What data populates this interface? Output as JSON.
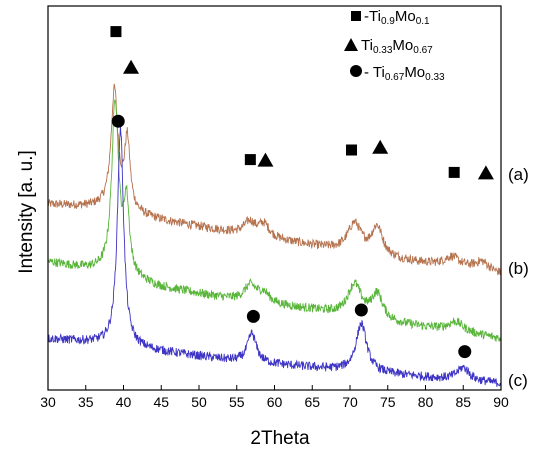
{
  "chart_data": {
    "type": "line",
    "xlabel": "2Theta",
    "ylabel": "Intensity [a. u.]",
    "xlim": [
      30,
      90
    ],
    "xticks": [
      30,
      35,
      40,
      45,
      50,
      55,
      60,
      65,
      70,
      75,
      80,
      85,
      90
    ],
    "grid": false,
    "legend": {
      "placement": "top-right",
      "entries": [
        {
          "marker": "square",
          "prefix": "-Ti",
          "sub1": "0.9",
          "mid": "Mo",
          "sub2": "0.1"
        },
        {
          "marker": "triangle",
          "prefix": "Ti",
          "sub1": "0.33",
          "mid": "Mo",
          "sub2": "0.67"
        },
        {
          "marker": "circle",
          "prefix": "- Ti",
          "sub1": "0.67",
          "mid": "Mo",
          "sub2": "0.33"
        }
      ]
    },
    "series": [
      {
        "name": "(a)",
        "color": "#b5734f",
        "baseline": [
          [
            30,
            0.58
          ],
          [
            37,
            0.57
          ],
          [
            45,
            0.53
          ],
          [
            55,
            0.49
          ],
          [
            65,
            0.45
          ],
          [
            75,
            0.41
          ],
          [
            85,
            0.38
          ],
          [
            90,
            0.36
          ]
        ],
        "peaks": [
          {
            "x": 38.8,
            "h": 0.37,
            "w": 0.55
          },
          {
            "x": 40.5,
            "h": 0.22,
            "w": 0.45
          },
          {
            "x": 56.7,
            "h": 0.04,
            "w": 0.9
          },
          {
            "x": 58.6,
            "h": 0.04,
            "w": 0.9
          },
          {
            "x": 70.6,
            "h": 0.09,
            "w": 1.1
          },
          {
            "x": 73.6,
            "h": 0.09,
            "w": 0.9
          },
          {
            "x": 83.5,
            "h": 0.03,
            "w": 1.2
          },
          {
            "x": 87.5,
            "h": 0.03,
            "w": 1.2
          }
        ]
      },
      {
        "name": "(b)",
        "color": "#59b53a",
        "baseline": [
          [
            30,
            0.4
          ],
          [
            37,
            0.37
          ],
          [
            45,
            0.32
          ],
          [
            55,
            0.28
          ],
          [
            65,
            0.25
          ],
          [
            75,
            0.21
          ],
          [
            85,
            0.18
          ],
          [
            90,
            0.16
          ]
        ],
        "peaks": [
          {
            "x": 38.9,
            "h": 0.54,
            "w": 0.55
          },
          {
            "x": 40.4,
            "h": 0.22,
            "w": 0.45
          },
          {
            "x": 56.8,
            "h": 0.05,
            "w": 1.0
          },
          {
            "x": 58.6,
            "h": 0.03,
            "w": 0.9
          },
          {
            "x": 70.6,
            "h": 0.1,
            "w": 1.1
          },
          {
            "x": 73.6,
            "h": 0.08,
            "w": 0.9
          },
          {
            "x": 84.0,
            "h": 0.03,
            "w": 1.2
          }
        ]
      },
      {
        "name": "(c)",
        "color": "#3d33c4",
        "baseline": [
          [
            30,
            0.16
          ],
          [
            35,
            0.15
          ],
          [
            45,
            0.12
          ],
          [
            55,
            0.09
          ],
          [
            65,
            0.07
          ],
          [
            75,
            0.05
          ],
          [
            85,
            0.03
          ],
          [
            90,
            0.02
          ]
        ],
        "peaks": [
          {
            "x": 39.6,
            "h": 0.68,
            "w": 0.5
          },
          {
            "x": 57.0,
            "h": 0.09,
            "w": 0.7
          },
          {
            "x": 71.5,
            "h": 0.15,
            "w": 0.85
          },
          {
            "x": 85.0,
            "h": 0.04,
            "w": 1.0
          }
        ]
      }
    ],
    "phase_markers": [
      {
        "shape": "square",
        "x": 39.0,
        "y": 1.12
      },
      {
        "shape": "triangle",
        "x": 41.0,
        "y": 1.01
      },
      {
        "shape": "square",
        "x": 56.8,
        "y": 0.72
      },
      {
        "shape": "triangle",
        "x": 58.8,
        "y": 0.72
      },
      {
        "shape": "square",
        "x": 70.2,
        "y": 0.75
      },
      {
        "shape": "triangle",
        "x": 74.0,
        "y": 0.76
      },
      {
        "shape": "square",
        "x": 83.8,
        "y": 0.68
      },
      {
        "shape": "triangle",
        "x": 88.0,
        "y": 0.68
      },
      {
        "shape": "circle",
        "x": 39.3,
        "y": 0.84
      },
      {
        "shape": "circle",
        "x": 57.2,
        "y": 0.23
      },
      {
        "shape": "circle",
        "x": 71.5,
        "y": 0.25
      },
      {
        "shape": "circle",
        "x": 85.2,
        "y": 0.12
      }
    ]
  }
}
